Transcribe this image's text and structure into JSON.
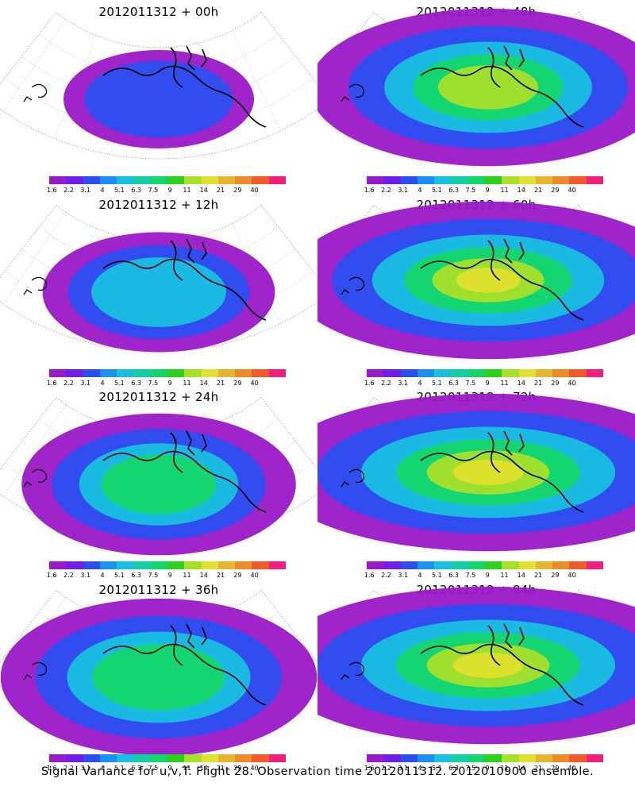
{
  "caption": "Signal Variance for u,v,T. Flight 28. Observation time 2012011312. 2012010900 ensemble.",
  "colorbar": {
    "labels": [
      "1.6",
      "2.2",
      "3.1",
      "4",
      "5.1",
      "6.3",
      "7.5",
      "9",
      "11",
      "14",
      "21",
      "29",
      "40"
    ],
    "colors": [
      "#9a19c8",
      "#6e1ee6",
      "#2b4ef0",
      "#1c8ff2",
      "#19bfe0",
      "#12cfa6",
      "#13d66a",
      "#2dd11a",
      "#a7e02b",
      "#e0e02e",
      "#e6b42e",
      "#ee8a28",
      "#f25a2a",
      "#f01f7a"
    ]
  },
  "panels": [
    {
      "title": "2012011312 + 00h",
      "level": 0
    },
    {
      "title": "2012011312 + 48h",
      "level": 4
    },
    {
      "title": "2012011312 + 12h",
      "level": 1
    },
    {
      "title": "2012011312 + 60h",
      "level": 5
    },
    {
      "title": "2012011312 + 24h",
      "level": 2
    },
    {
      "title": "2012011312 + 72h",
      "level": 6
    },
    {
      "title": "2012011312 + 36h",
      "level": 3
    },
    {
      "title": "2012011312 + 84h",
      "level": 7
    }
  ]
}
